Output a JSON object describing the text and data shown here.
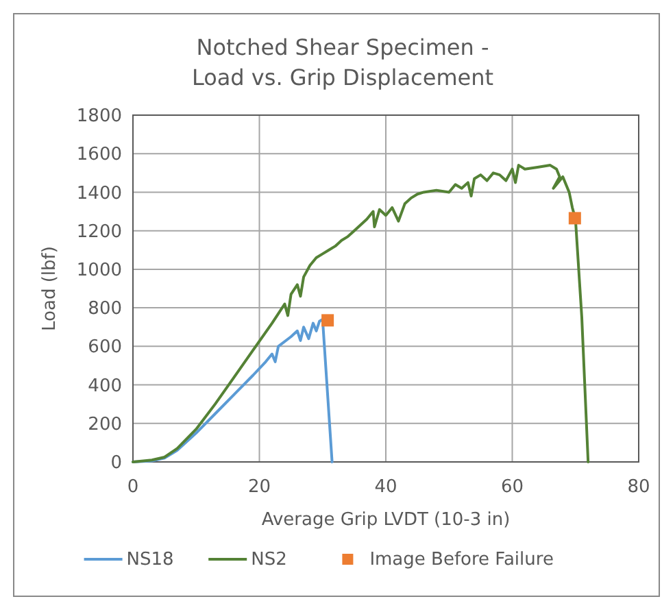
{
  "chart_data": {
    "type": "line",
    "title": "Notched Shear Specimen -\nLoad vs. Grip Displacement",
    "xlabel": "Average Grip LVDT (10-3 in)",
    "ylabel": "Load (lbf)",
    "xlim": [
      0,
      80
    ],
    "xticks": [
      0,
      20,
      40,
      60,
      80
    ],
    "ylim": [
      0,
      1800
    ],
    "yticks": [
      0,
      200,
      400,
      600,
      800,
      1000,
      1200,
      1400,
      1600,
      1800
    ],
    "grid": true,
    "legend": "bottom",
    "series": [
      {
        "name": "NS18",
        "color": "#5b9bd5",
        "x": [
          0,
          3,
          5,
          7,
          10,
          13,
          16,
          19,
          21,
          22,
          22.5,
          23,
          25,
          26,
          26.5,
          27,
          27.8,
          28.5,
          29,
          29.5,
          30,
          31.5
        ],
        "values": [
          0,
          5,
          20,
          60,
          150,
          250,
          350,
          450,
          520,
          560,
          520,
          600,
          650,
          680,
          630,
          700,
          640,
          720,
          680,
          730,
          740,
          0
        ]
      },
      {
        "name": "NS2",
        "color": "#548235",
        "x": [
          0,
          3,
          5,
          7,
          10,
          13,
          16,
          19,
          22,
          23,
          24,
          24.5,
          25,
          26,
          26.5,
          27,
          28,
          29,
          30,
          31,
          32,
          33,
          34,
          35,
          36,
          37,
          38,
          38.2,
          39,
          40,
          41,
          42,
          43,
          44,
          45,
          46,
          48,
          50,
          51,
          52,
          53,
          53.5,
          54,
          55,
          56,
          57,
          58,
          59,
          60,
          60.5,
          61,
          62,
          64,
          66,
          67,
          67.5,
          66.5,
          68,
          69,
          69.5,
          70,
          71,
          72
        ],
        "values": [
          0,
          10,
          25,
          70,
          170,
          300,
          440,
          580,
          720,
          770,
          820,
          760,
          870,
          920,
          860,
          960,
          1020,
          1060,
          1080,
          1100,
          1120,
          1150,
          1170,
          1200,
          1230,
          1260,
          1300,
          1220,
          1310,
          1280,
          1320,
          1250,
          1340,
          1370,
          1390,
          1400,
          1410,
          1400,
          1440,
          1420,
          1450,
          1380,
          1470,
          1490,
          1460,
          1500,
          1490,
          1460,
          1520,
          1450,
          1540,
          1520,
          1530,
          1540,
          1520,
          1480,
          1420,
          1480,
          1400,
          1320,
          1260,
          750,
          0
        ]
      },
      {
        "name": "Image Before Failure",
        "type": "scatter",
        "marker": "square",
        "color": "#ed7d31",
        "x": [
          30.8,
          69.9
        ],
        "values": [
          735,
          1265
        ]
      }
    ]
  }
}
